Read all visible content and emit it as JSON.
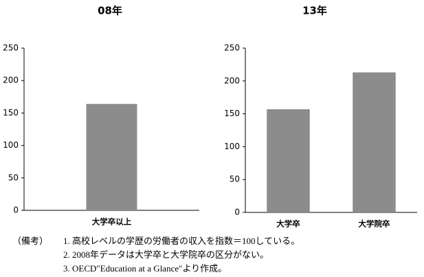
{
  "chart_data": [
    {
      "type": "bar",
      "title": "08年",
      "categories": [
        "大学卒以上"
      ],
      "values": [
        164
      ],
      "color": "#8c8c8c",
      "ylim": [
        0,
        250
      ],
      "yticks": [
        0,
        50,
        100,
        150,
        200,
        250
      ],
      "grid": false
    },
    {
      "type": "bar",
      "title": "13年",
      "categories": [
        "大学卒",
        "大学院卒"
      ],
      "values": [
        157,
        213
      ],
      "color": "#8c8c8c",
      "ylim": [
        0,
        250
      ],
      "yticks": [
        0,
        50,
        100,
        150,
        200,
        250
      ],
      "grid": false
    }
  ],
  "notes": {
    "label": "（備考）",
    "items": [
      "1. 高校レベルの学歴の労働者の収入を指数＝100している。",
      "2. 2008年データは大学卒と大学院卒の区分がない。",
      "3. OECD\"Education at a Glance\"より作成。"
    ]
  }
}
